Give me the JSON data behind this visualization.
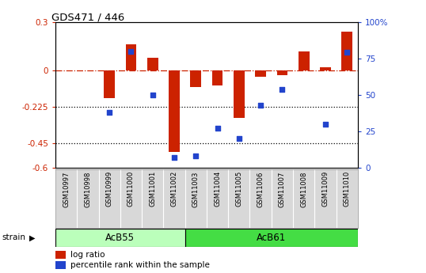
{
  "title": "GDS471 / 446",
  "samples": [
    "GSM10997",
    "GSM10998",
    "GSM10999",
    "GSM11000",
    "GSM11001",
    "GSM11002",
    "GSM11003",
    "GSM11004",
    "GSM11005",
    "GSM11006",
    "GSM11007",
    "GSM11008",
    "GSM11009",
    "GSM11010"
  ],
  "log_ratio": [
    0.0,
    0.0,
    -0.17,
    0.16,
    0.08,
    -0.5,
    -0.1,
    -0.09,
    -0.29,
    -0.04,
    -0.03,
    0.12,
    0.02,
    0.24
  ],
  "percentile_rank_pct": [
    null,
    null,
    38,
    80,
    50,
    7,
    8,
    27,
    20,
    43,
    54,
    null,
    30,
    79
  ],
  "groups": [
    {
      "name": "AcB55",
      "start": 0,
      "end": 5,
      "color": "#bbffbb"
    },
    {
      "name": "AcB61",
      "start": 6,
      "end": 13,
      "color": "#44dd44"
    }
  ],
  "ylim": [
    -0.6,
    0.3
  ],
  "yticks_left": [
    0.3,
    0.0,
    -0.225,
    -0.45,
    -0.6
  ],
  "ytick_labels_left": [
    "0.3",
    "0",
    "-0.225",
    "-0.45",
    "-0.6"
  ],
  "pct_ticks": [
    100,
    75,
    50,
    25,
    0
  ],
  "pct_tick_labels": [
    "100%",
    "75",
    "50",
    "25",
    "0"
  ],
  "hline_y": 0.0,
  "dotted_lines": [
    -0.225,
    -0.45
  ],
  "bar_color": "#cc2200",
  "dot_color": "#2244cc",
  "bar_width": 0.5,
  "dot_size": 25,
  "background_color": "#ffffff"
}
